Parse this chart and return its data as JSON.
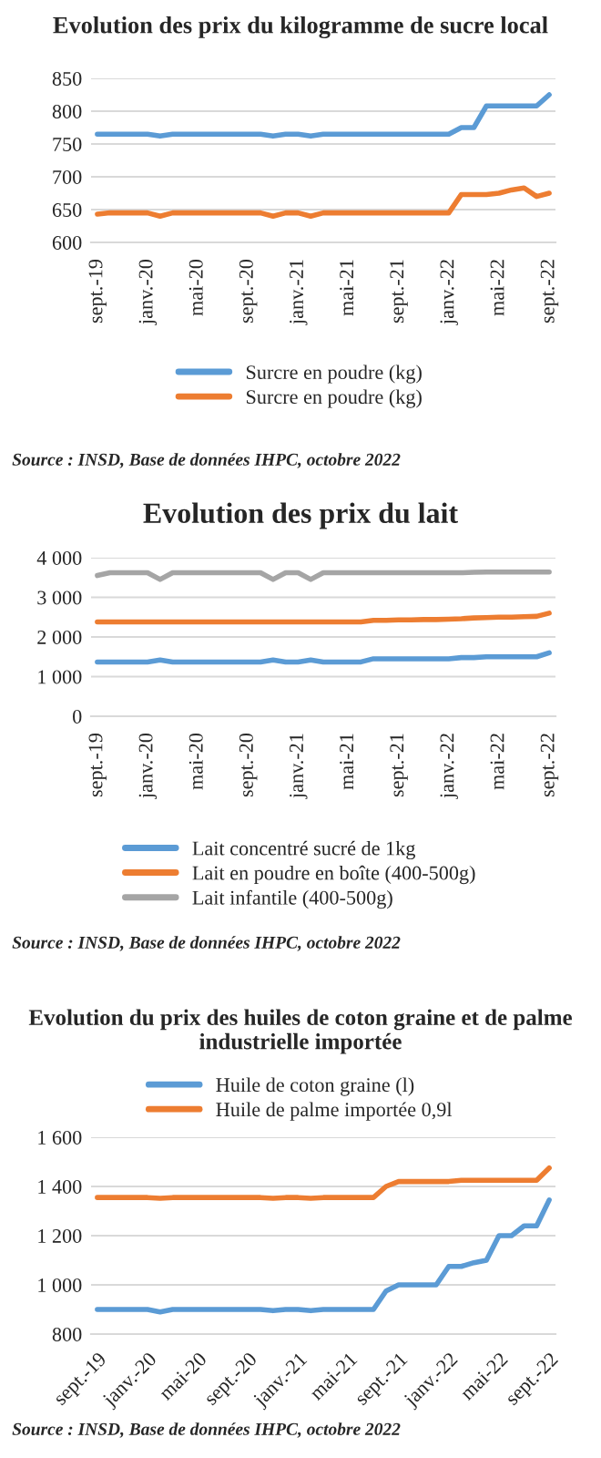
{
  "chart_data": [
    {
      "type": "line",
      "title": "Evolution des prix du kilogramme de sucre local",
      "categories": [
        "sept.-19",
        null,
        null,
        null,
        "janv.-20",
        null,
        null,
        null,
        "mai-20",
        null,
        null,
        null,
        "sept.-20",
        null,
        null,
        null,
        "janv.-21",
        null,
        null,
        null,
        "mai-21",
        null,
        null,
        null,
        "sept.-21",
        null,
        null,
        null,
        "janv.-22",
        null,
        null,
        null,
        "mai-22",
        null,
        null,
        null,
        "sept.-22"
      ],
      "series": [
        {
          "name": "Surcre en poudre (kg)",
          "color": "#5b9bd5",
          "values": [
            765,
            765,
            765,
            765,
            765,
            762,
            765,
            765,
            765,
            765,
            765,
            765,
            765,
            765,
            762,
            765,
            765,
            762,
            765,
            765,
            765,
            765,
            765,
            765,
            765,
            765,
            765,
            765,
            765,
            775,
            775,
            808,
            808,
            808,
            808,
            808,
            825
          ]
        },
        {
          "name": "Surcre en poudre (kg)",
          "color": "#ed7d31",
          "values": [
            643,
            645,
            645,
            645,
            645,
            640,
            645,
            645,
            645,
            645,
            645,
            645,
            645,
            645,
            640,
            645,
            645,
            640,
            645,
            645,
            645,
            645,
            645,
            645,
            645,
            645,
            645,
            645,
            645,
            673,
            673,
            673,
            675,
            680,
            683,
            670,
            675
          ]
        }
      ],
      "ylim": [
        600,
        850
      ],
      "yticks": [
        600,
        650,
        700,
        750,
        800,
        850
      ],
      "grid": "y",
      "legend": "bottom",
      "annotations": [
        "Source : INSD, Base de données IHPC, octobre 2022"
      ]
    },
    {
      "type": "line",
      "title": "Evolution des prix du lait",
      "categories": [
        "sept.-19",
        null,
        null,
        null,
        "janv.-20",
        null,
        null,
        null,
        "mai-20",
        null,
        null,
        null,
        "sept.-20",
        null,
        null,
        null,
        "janv.-21",
        null,
        null,
        null,
        "mai-21",
        null,
        null,
        null,
        "sept.-21",
        null,
        null,
        null,
        "janv.-22",
        null,
        null,
        null,
        "mai-22",
        null,
        null,
        null,
        "sept.-22"
      ],
      "series": [
        {
          "name": "Lait concentré sucré de 1kg",
          "color": "#5b9bd5",
          "values": [
            1370,
            1370,
            1370,
            1370,
            1370,
            1420,
            1370,
            1370,
            1370,
            1370,
            1370,
            1370,
            1370,
            1370,
            1420,
            1370,
            1370,
            1420,
            1370,
            1370,
            1370,
            1370,
            1450,
            1450,
            1450,
            1450,
            1450,
            1450,
            1450,
            1480,
            1480,
            1500,
            1500,
            1500,
            1500,
            1500,
            1600
          ]
        },
        {
          "name": "Lait en poudre en boîte (400-500g)",
          "color": "#ed7d31",
          "values": [
            2380,
            2380,
            2380,
            2380,
            2380,
            2380,
            2380,
            2380,
            2380,
            2380,
            2380,
            2380,
            2380,
            2380,
            2380,
            2380,
            2380,
            2380,
            2380,
            2380,
            2380,
            2380,
            2420,
            2420,
            2430,
            2430,
            2440,
            2440,
            2450,
            2460,
            2480,
            2490,
            2500,
            2500,
            2510,
            2520,
            2600
          ]
        },
        {
          "name": "Lait infantile (400-500g)",
          "color": "#a5a5a5",
          "values": [
            3550,
            3620,
            3620,
            3620,
            3620,
            3450,
            3620,
            3620,
            3620,
            3620,
            3620,
            3620,
            3620,
            3620,
            3450,
            3620,
            3620,
            3450,
            3620,
            3620,
            3620,
            3620,
            3620,
            3620,
            3620,
            3620,
            3620,
            3620,
            3620,
            3620,
            3630,
            3640,
            3640,
            3640,
            3640,
            3640,
            3640
          ]
        }
      ],
      "ylim": [
        0,
        4000
      ],
      "yticks": [
        {
          "value": 0,
          "label": "0"
        },
        {
          "value": 1000,
          "label": "1 000"
        },
        {
          "value": 2000,
          "label": "2 000"
        },
        {
          "value": 3000,
          "label": "3 000"
        },
        {
          "value": 4000,
          "label": "4 000"
        }
      ],
      "grid": "y",
      "legend": "bottom",
      "annotations": [
        "Source : INSD, Base de données IHPC, octobre 2022"
      ]
    },
    {
      "type": "line",
      "title": "Evolution du prix des huiles de coton graine et de palme industrielle importée",
      "categories": [
        "sept.-19",
        null,
        null,
        null,
        "janv.-20",
        null,
        null,
        null,
        "mai-20",
        null,
        null,
        null,
        "sept.-20",
        null,
        null,
        null,
        "janv.-21",
        null,
        null,
        null,
        "mai-21",
        null,
        null,
        null,
        "sept.-21",
        null,
        null,
        null,
        "janv.-22",
        null,
        null,
        null,
        "mai-22",
        null,
        null,
        null,
        "sept.-22"
      ],
      "series": [
        {
          "name": "Huile de coton graine (l)",
          "color": "#5b9bd5",
          "values": [
            900,
            900,
            900,
            900,
            900,
            890,
            900,
            900,
            900,
            900,
            900,
            900,
            900,
            900,
            895,
            900,
            900,
            895,
            900,
            900,
            900,
            900,
            900,
            975,
            1000,
            1000,
            1000,
            1000,
            1075,
            1075,
            1090,
            1100,
            1200,
            1200,
            1240,
            1240,
            1345
          ]
        },
        {
          "name": "Huile de palme importée 0,9l",
          "color": "#ed7d31",
          "values": [
            1355,
            1355,
            1355,
            1355,
            1355,
            1352,
            1355,
            1355,
            1355,
            1355,
            1355,
            1355,
            1355,
            1355,
            1352,
            1355,
            1355,
            1352,
            1355,
            1355,
            1355,
            1355,
            1355,
            1400,
            1420,
            1420,
            1420,
            1420,
            1420,
            1425,
            1425,
            1425,
            1425,
            1425,
            1425,
            1425,
            1475
          ]
        }
      ],
      "ylim": [
        800,
        1600
      ],
      "yticks": [
        {
          "value": 800,
          "label": "800"
        },
        {
          "value": 1000,
          "label": "1 000"
        },
        {
          "value": 1200,
          "label": "1 200"
        },
        {
          "value": 1400,
          "label": "1 400"
        },
        {
          "value": 1600,
          "label": "1 600"
        }
      ],
      "grid": "y",
      "legend": "top",
      "annotations": [
        "Source : INSD, Base de données IHPC, octobre 2022"
      ]
    }
  ]
}
